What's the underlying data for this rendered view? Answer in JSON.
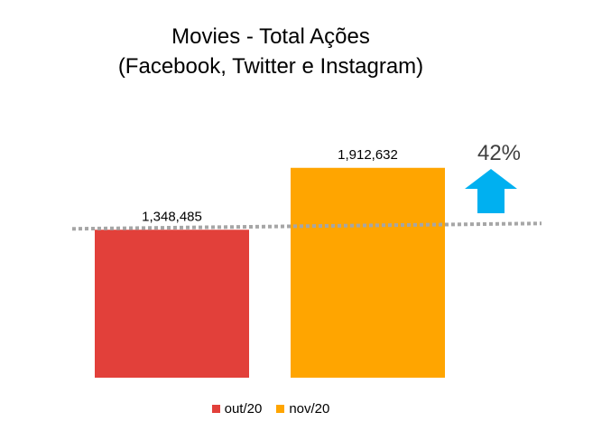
{
  "chart_data": {
    "type": "bar",
    "title": "Movies - Total Ações",
    "subtitle": "(Facebook, Twitter e Instagram)",
    "categories": [
      "out/20",
      "nov/20"
    ],
    "values": [
      1348485,
      1912632
    ],
    "value_labels": [
      "1,348,485",
      "1,912,632"
    ],
    "colors": [
      "#e2403a",
      "#ffa500"
    ],
    "legend_position": "bottom",
    "grid": false,
    "reference_line": {
      "value": 1348485,
      "style": "dotted",
      "color": "#a6a6a6"
    },
    "change_annotation": {
      "label": "42%",
      "direction": "up",
      "color": "#00b0f0"
    },
    "ylim": [
      0,
      2100000
    ]
  }
}
